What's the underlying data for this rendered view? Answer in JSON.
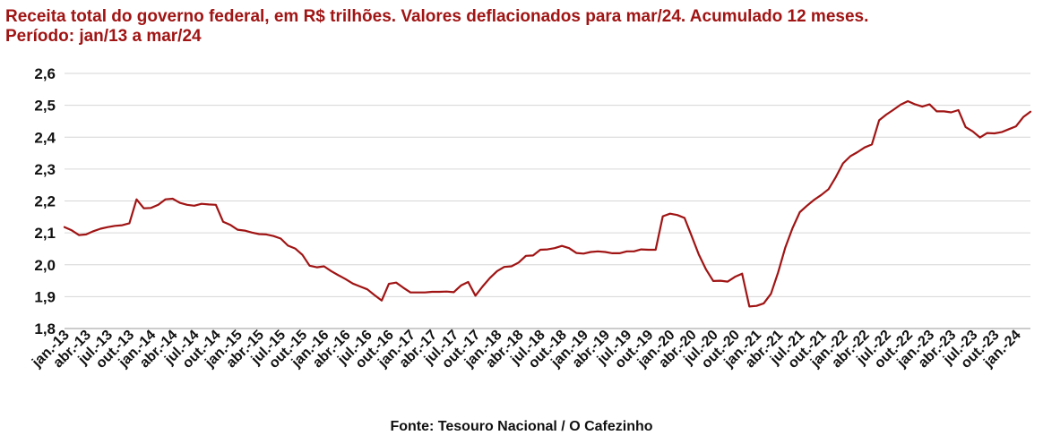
{
  "title_line1": "Receita total do governo federal, em R$ trilhões. Valores deflacionados para mar/24. Acumulado 12 meses.",
  "title_line2": "Período: jan/13 a mar/24",
  "source": "Fonte: Tesouro Nacional / O Cafezinho",
  "chart_data": {
    "type": "line",
    "title": "Receita total do governo federal, em R$ trilhões. Valores deflacionados para mar/24. Acumulado 12 meses. Período: jan/13 a mar/24",
    "ylim": [
      1.8,
      2.6
    ],
    "yticks": [
      "1,8",
      "1,9",
      "2,0",
      "2,1",
      "2,2",
      "2,3",
      "2,4",
      "2,5",
      "2,6"
    ],
    "grid": true,
    "line_color": "#a01414",
    "x_labels": [
      "jan.-13",
      "abr.-13",
      "jul.-13",
      "out.-13",
      "jan.-14",
      "abr.-14",
      "jul.-14",
      "out.-14",
      "jan.-15",
      "abr.-15",
      "jul.-15",
      "out.-15",
      "jan.-16",
      "abr.-16",
      "jul.-16",
      "out.-16",
      "jan.-17",
      "abr.-17",
      "jul.-17",
      "out.-17",
      "jan.-18",
      "abr.-18",
      "jul.-18",
      "out.-18",
      "jan.-19",
      "abr.-19",
      "jul.-19",
      "out.-19",
      "jan.-20",
      "abr.-20",
      "jul.-20",
      "out.-20",
      "jan.-21",
      "abr.-21",
      "jul.-21",
      "out.-21",
      "jan.-22",
      "abr.-22",
      "jul.-22",
      "out.-22",
      "jan.-23",
      "abr.-23",
      "jul.-23",
      "out.-23",
      "jan.-24"
    ],
    "x_label_every": 3,
    "series": [
      {
        "values": [
          2.118,
          2.108,
          2.093,
          2.095,
          2.105,
          2.113,
          2.118,
          2.122,
          2.124,
          2.13,
          2.205,
          2.177,
          2.178,
          2.188,
          2.205,
          2.207,
          2.194,
          2.188,
          2.185,
          2.191,
          2.189,
          2.188,
          2.135,
          2.125,
          2.11,
          2.107,
          2.101,
          2.096,
          2.095,
          2.09,
          2.082,
          2.06,
          2.051,
          2.031,
          1.997,
          1.992,
          1.995,
          1.98,
          1.967,
          1.955,
          1.941,
          1.932,
          1.923,
          1.905,
          1.888,
          1.94,
          1.944,
          1.928,
          1.913,
          1.913,
          1.913,
          1.915,
          1.915,
          1.916,
          1.914,
          1.935,
          1.946,
          1.903,
          1.932,
          1.958,
          1.98,
          1.993,
          1.995,
          2.007,
          2.028,
          2.029,
          2.047,
          2.048,
          2.052,
          2.059,
          2.052,
          2.037,
          2.035,
          2.04,
          2.042,
          2.04,
          2.036,
          2.036,
          2.042,
          2.042,
          2.048,
          2.047,
          2.047,
          2.152,
          2.16,
          2.156,
          2.147,
          2.09,
          2.032,
          1.985,
          1.949,
          1.95,
          1.947,
          1.962,
          1.972,
          1.869,
          1.871,
          1.879,
          1.909,
          1.976,
          2.055,
          2.115,
          2.165,
          2.185,
          2.204,
          2.219,
          2.237,
          2.275,
          2.318,
          2.34,
          2.353,
          2.368,
          2.377,
          2.453,
          2.471,
          2.486,
          2.502,
          2.513,
          2.503,
          2.496,
          2.503,
          2.481,
          2.481,
          2.478,
          2.485,
          2.432,
          2.418,
          2.399,
          2.413,
          2.412,
          2.416,
          2.425,
          2.434,
          2.463,
          2.48
        ]
      }
    ]
  }
}
